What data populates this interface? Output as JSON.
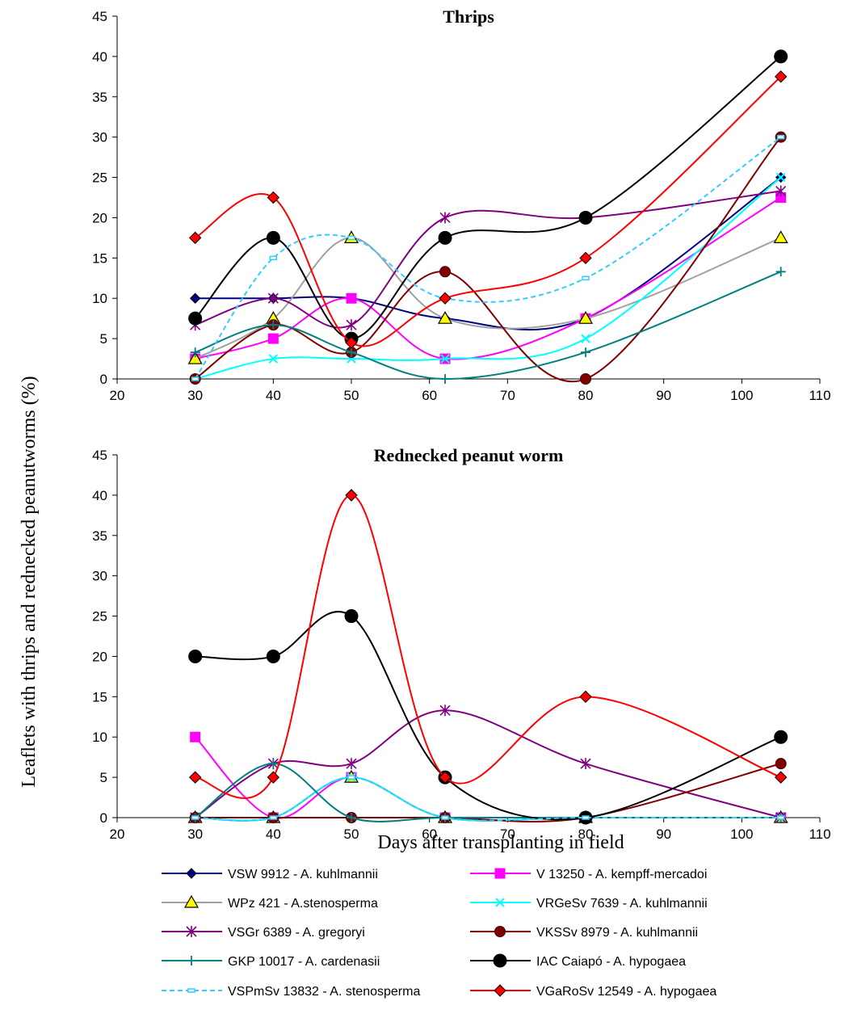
{
  "figure": {
    "ylabel": "Leaflets with thrips and rednecked peanutworms (%)",
    "xlabel": "Days after transplanting in field"
  },
  "series_styles": [
    {
      "name": "VSW 9912 - A. kuhlmannii",
      "color": "#000080",
      "marker": "diamond",
      "fill": "#000080",
      "dash": false
    },
    {
      "name": "V 13250 - A. kempff-mercadoi",
      "color": "#ff00ff",
      "marker": "square",
      "fill": "#ff00ff",
      "dash": false
    },
    {
      "name": "WPz 421 - A.stenosperma",
      "color": "#a0a0a0",
      "marker": "triangle",
      "fill": "#ffff00",
      "dash": false
    },
    {
      "name": "VRGeSv 7639 - A. kuhlmannii",
      "color": "#00ffff",
      "marker": "x",
      "fill": "none",
      "dash": false
    },
    {
      "name": "VSGr 6389 - A. gregoryi",
      "color": "#800080",
      "marker": "star",
      "fill": "none",
      "dash": false
    },
    {
      "name": "VKSSv 8979 - A. kuhlmannii",
      "color": "#800000",
      "marker": "circle-small",
      "fill": "#800000",
      "dash": false
    },
    {
      "name": "GKP 10017 - A. cardenasii",
      "color": "#008080",
      "marker": "plus",
      "fill": "none",
      "dash": false
    },
    {
      "name": "IAC Caiapó - A. hypogaea",
      "color": "#000000",
      "marker": "circle",
      "fill": "#000000",
      "dash": false
    },
    {
      "name": "VSPmSv 13832 - A. stenosperma",
      "color": "#33ccff",
      "marker": "dash",
      "fill": "none",
      "dash": true
    },
    {
      "name": "VGaRoSv 12549 - A. hypogaea",
      "color": "#ff0000",
      "marker": "diamond-red",
      "fill": "#ff0000",
      "dash": false
    }
  ],
  "chart_data": [
    {
      "type": "line",
      "title": "Thrips",
      "xlim": [
        20,
        110
      ],
      "ylim": [
        0,
        45
      ],
      "xticks": [
        20,
        30,
        40,
        50,
        60,
        70,
        80,
        90,
        100,
        110
      ],
      "yticks": [
        0,
        5,
        10,
        15,
        20,
        25,
        30,
        35,
        40,
        45
      ],
      "x": [
        30,
        40,
        50,
        62,
        80,
        105
      ],
      "series": [
        {
          "name": "VSW 9912 - A. kuhlmannii",
          "values": [
            10,
            10,
            10,
            7.5,
            7.5,
            25
          ]
        },
        {
          "name": "V 13250 - A. kempff-mercadoi",
          "values": [
            2.5,
            5,
            10,
            2.5,
            7.5,
            22.5
          ]
        },
        {
          "name": "WPz 421 - A.stenosperma",
          "values": [
            2.5,
            7.5,
            17.5,
            7.5,
            7.5,
            17.5
          ]
        },
        {
          "name": "VRGeSv 7639 - A. kuhlmannii",
          "values": [
            0,
            2.5,
            2.5,
            2.5,
            5,
            25
          ]
        },
        {
          "name": "VSGr 6389 - A. gregoryi",
          "values": [
            6.7,
            10,
            6.7,
            20,
            20,
            23.3
          ]
        },
        {
          "name": "VKSSv 8979 - A. kuhlmannii",
          "values": [
            0,
            6.7,
            3.3,
            13.3,
            0,
            30
          ]
        },
        {
          "name": "GKP 10017 - A. cardenasii",
          "values": [
            3.3,
            6.7,
            3.3,
            0,
            3.3,
            13.3
          ]
        },
        {
          "name": "IAC Caiapó - A. hypogaea",
          "values": [
            7.5,
            17.5,
            5,
            17.5,
            20,
            40
          ]
        },
        {
          "name": "VSPmSv 13832 - A. stenosperma",
          "values": [
            0,
            15,
            17.5,
            10,
            12.5,
            30
          ]
        },
        {
          "name": "VGaRoSv 12549 - A. hypogaea",
          "values": [
            17.5,
            22.5,
            4.5,
            10,
            15,
            37.5
          ]
        }
      ]
    },
    {
      "type": "line",
      "title": "Rednecked peanut worm",
      "xlim": [
        20,
        110
      ],
      "ylim": [
        0,
        45
      ],
      "xticks": [
        20,
        30,
        40,
        50,
        60,
        70,
        80,
        90,
        100,
        110
      ],
      "yticks": [
        0,
        5,
        10,
        15,
        20,
        25,
        30,
        35,
        40,
        45
      ],
      "x": [
        30,
        40,
        50,
        62,
        80,
        105
      ],
      "series": [
        {
          "name": "VSW 9912 - A. kuhlmannii",
          "values": [
            0,
            0,
            5,
            0,
            0,
            0
          ]
        },
        {
          "name": "V 13250 - A. kempff-mercadoi",
          "values": [
            10,
            0,
            5,
            0,
            0,
            0
          ]
        },
        {
          "name": "WPz 421 - A.stenosperma",
          "values": [
            0,
            0,
            5,
            0,
            0,
            0
          ]
        },
        {
          "name": "VRGeSv 7639 - A. kuhlmannii",
          "values": [
            0,
            0,
            5,
            0,
            0,
            0
          ]
        },
        {
          "name": "VSGr 6389 - A. gregoryi",
          "values": [
            0,
            6.7,
            6.7,
            13.3,
            6.7,
            0
          ]
        },
        {
          "name": "VKSSv 8979 - A. kuhlmannii",
          "values": [
            0,
            0,
            0,
            0,
            0,
            6.7
          ]
        },
        {
          "name": "GKP 10017 - A. cardenasii",
          "values": [
            0,
            6.7,
            0,
            0,
            0,
            0
          ]
        },
        {
          "name": "IAC Caiapó - A. hypogaea",
          "values": [
            20,
            20,
            25,
            5,
            0,
            10
          ]
        },
        {
          "name": "VSPmSv 13832 - A. stenosperma",
          "values": [
            0,
            0,
            5,
            0,
            0,
            0
          ]
        },
        {
          "name": "VGaRoSv 12549 - A. hypogaea",
          "values": [
            5,
            5,
            40,
            5,
            15,
            5
          ]
        }
      ]
    }
  ]
}
